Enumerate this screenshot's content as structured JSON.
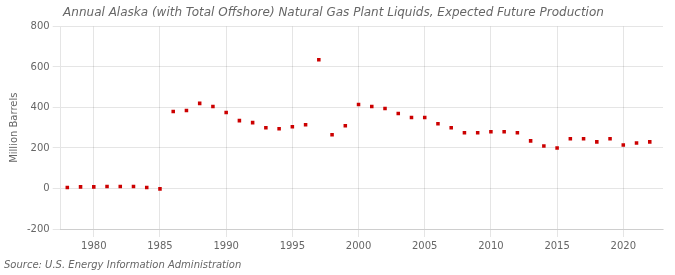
{
  "chart_data": {
    "type": "scatter",
    "title": "Annual Alaska (with Total Offshore) Natural Gas Plant Liquids, Expected Future Production",
    "ylabel": "Million Barrels",
    "source": "Source: U.S. Energy Information Administration",
    "color": "#cc0000",
    "marker": "square",
    "x": [
      1978,
      1979,
      1980,
      1981,
      1982,
      1983,
      1984,
      1985,
      1986,
      1987,
      1988,
      1989,
      1990,
      1991,
      1992,
      1993,
      1994,
      1995,
      1996,
      1997,
      1998,
      1999,
      2000,
      2001,
      2002,
      2003,
      2004,
      2005,
      2006,
      2007,
      2008,
      2009,
      2010,
      2011,
      2012,
      2013,
      2014,
      2015,
      2016,
      2017,
      2018,
      2019,
      2020,
      2021,
      2022
    ],
    "values": [
      5,
      8,
      8,
      10,
      10,
      10,
      5,
      -2,
      380,
      385,
      420,
      405,
      375,
      335,
      325,
      300,
      295,
      305,
      315,
      635,
      265,
      310,
      415,
      405,
      395,
      370,
      350,
      350,
      320,
      300,
      275,
      275,
      280,
      280,
      275,
      235,
      210,
      200,
      245,
      245,
      230,
      245,
      215,
      225,
      230
    ],
    "xlim": [
      1977.5,
      2023
    ],
    "ylim": [
      -200,
      800
    ],
    "xticks": [
      1980,
      1985,
      1990,
      1995,
      2000,
      2005,
      2010,
      2015,
      2020
    ],
    "yticks": [
      -200,
      0,
      200,
      400,
      600,
      800
    ],
    "grid": true
  }
}
